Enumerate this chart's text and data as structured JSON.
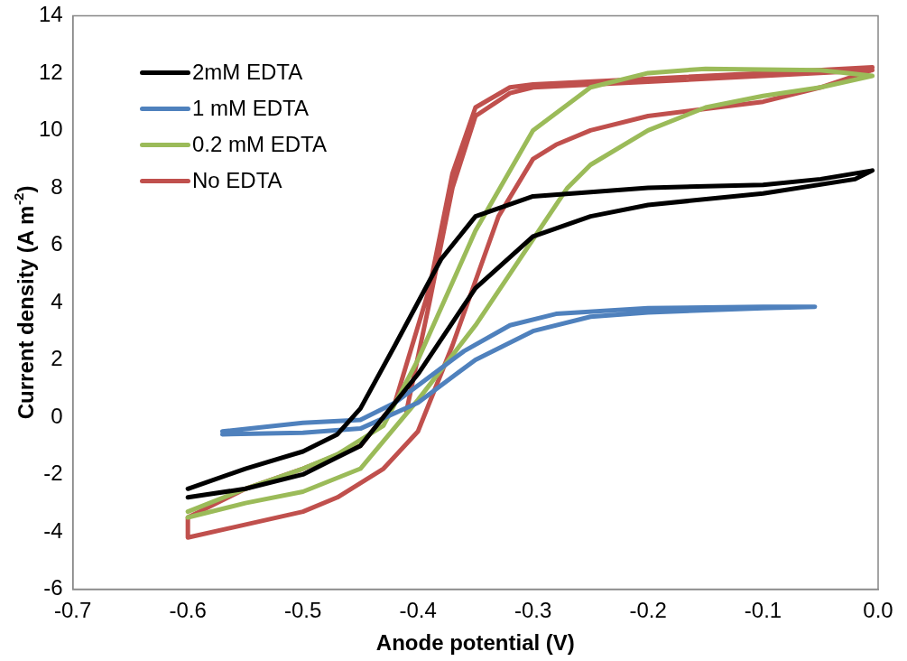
{
  "chart_data": {
    "type": "line",
    "xlabel": "Anode potential (V)",
    "ylabel": "Current density (A m$^{-2}$)",
    "xlim": [
      -0.7,
      0.0
    ],
    "xticks": [
      -0.7,
      -0.6,
      -0.5,
      -0.4,
      -0.3,
      -0.2,
      -0.1,
      {
        "value": 0,
        "label": "0.0"
      }
    ],
    "ylim": [
      -6,
      14
    ],
    "yticks": [
      -6,
      -4,
      -2,
      0,
      2,
      4,
      6,
      8,
      10,
      12,
      14
    ],
    "grid": false,
    "legend": "top left",
    "marker": "none",
    "line_style": "solid",
    "series": [
      {
        "name": "2mM EDTA",
        "color": "#000000",
        "x": [
          -0.6,
          -0.55,
          -0.5,
          -0.45,
          -0.4,
          -0.35,
          -0.3,
          -0.25,
          -0.2,
          -0.1,
          -0.02,
          -0.005,
          -0.05,
          -0.1,
          -0.2,
          -0.3,
          -0.35,
          -0.38,
          -0.42,
          -0.45,
          -0.47,
          -0.5,
          -0.55,
          -0.6
        ],
        "values": [
          -2.8,
          -2.5,
          -2.0,
          -1.0,
          1.5,
          4.5,
          6.3,
          7.0,
          7.4,
          7.8,
          8.3,
          8.6,
          8.3,
          8.1,
          8.0,
          7.7,
          7.0,
          5.5,
          2.5,
          0.3,
          -0.6,
          -1.2,
          -1.8,
          -2.5
        ]
      },
      {
        "name": "1 mM EDTA",
        "color": "#4f81bd",
        "x": [
          -0.57,
          -0.5,
          -0.45,
          -0.4,
          -0.35,
          -0.3,
          -0.25,
          -0.2,
          -0.1,
          -0.055,
          -0.1,
          -0.2,
          -0.28,
          -0.32,
          -0.36,
          -0.42,
          -0.45,
          -0.5,
          -0.57
        ],
        "values": [
          -0.6,
          -0.55,
          -0.4,
          0.5,
          2.0,
          3.0,
          3.5,
          3.65,
          3.8,
          3.85,
          3.85,
          3.8,
          3.6,
          3.2,
          2.3,
          0.5,
          -0.1,
          -0.2,
          -0.5
        ]
      },
      {
        "name": "0.2 mM EDTA",
        "color": "#9bbb59",
        "x": [
          -0.6,
          -0.55,
          -0.5,
          -0.45,
          -0.4,
          -0.35,
          -0.3,
          -0.27,
          -0.25,
          -0.2,
          -0.15,
          -0.1,
          -0.05,
          -0.005,
          -0.05,
          -0.15,
          -0.2,
          -0.25,
          -0.3,
          -0.35,
          -0.4,
          -0.43,
          -0.47,
          -0.5,
          -0.55,
          -0.6
        ],
        "values": [
          -3.5,
          -3.0,
          -2.6,
          -1.8,
          0.6,
          3.2,
          6.2,
          8.0,
          8.8,
          10.0,
          10.8,
          11.2,
          11.5,
          11.9,
          12.1,
          12.15,
          12.0,
          11.5,
          10.0,
          6.5,
          2.0,
          -0.3,
          -1.3,
          -1.8,
          -2.5,
          -3.3
        ]
      },
      {
        "name": "No EDTA",
        "color": "#c0504d",
        "x": [
          -0.41,
          -0.39,
          -0.37,
          -0.35,
          -0.32,
          -0.3,
          -0.2,
          -0.1,
          -0.005,
          -0.05,
          -0.1,
          -0.2,
          -0.25,
          -0.28,
          -0.3,
          -0.33,
          -0.37,
          -0.4,
          -0.43,
          -0.47,
          -0.5,
          -0.6,
          -0.6,
          -0.55,
          -0.5,
          -0.45,
          -0.42,
          -0.39,
          -0.37,
          -0.35,
          -0.32,
          -0.3,
          -0.2,
          -0.1,
          -0.005
        ],
        "values": [
          0.2,
          4.0,
          8.0,
          10.5,
          11.3,
          11.5,
          11.7,
          11.9,
          12.1,
          11.5,
          11.0,
          10.5,
          10.0,
          9.5,
          9.0,
          7.0,
          2.5,
          -0.5,
          -1.8,
          -2.8,
          -3.3,
          -4.2,
          -3.5,
          -2.5,
          -1.8,
          -1.0,
          0.5,
          4.5,
          8.5,
          10.8,
          11.5,
          11.6,
          11.8,
          12.0,
          12.2
        ]
      }
    ]
  }
}
